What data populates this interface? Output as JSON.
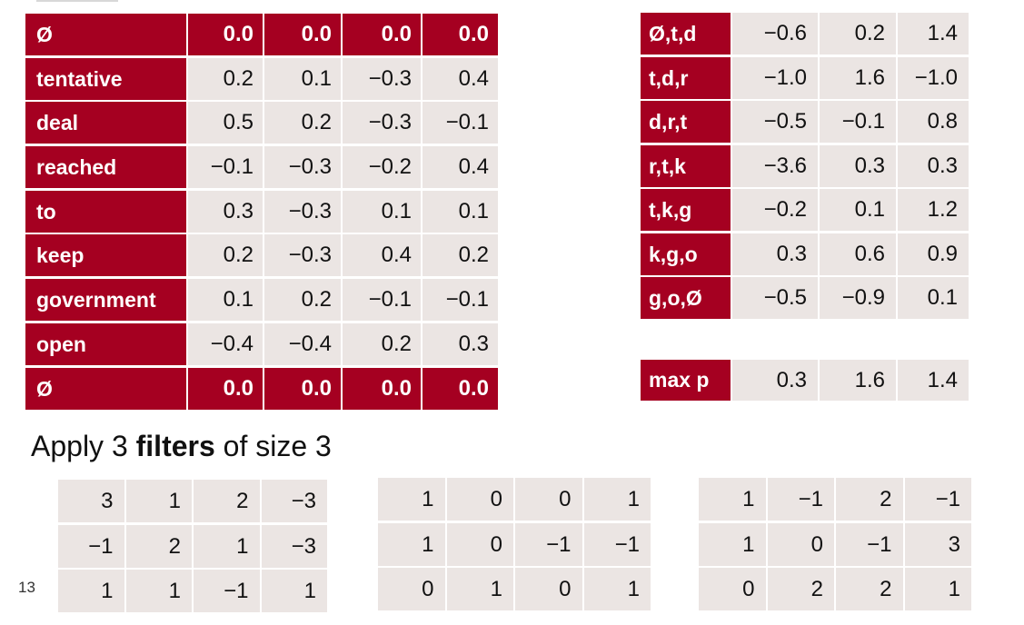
{
  "embedding_table": {
    "rows": [
      {
        "label": "Ø",
        "values": [
          "0.0",
          "0.0",
          "0.0",
          "0.0"
        ],
        "padding": true
      },
      {
        "label": "tentative",
        "values": [
          "0.2",
          "0.1",
          "−0.3",
          "0.4"
        ],
        "padding": false
      },
      {
        "label": "deal",
        "values": [
          "0.5",
          "0.2",
          "−0.3",
          "−0.1"
        ],
        "padding": false
      },
      {
        "label": "reached",
        "values": [
          "−0.1",
          "−0.3",
          "−0.2",
          "0.4"
        ],
        "padding": false
      },
      {
        "label": "to",
        "values": [
          "0.3",
          "−0.3",
          "0.1",
          "0.1"
        ],
        "padding": false
      },
      {
        "label": "keep",
        "values": [
          "0.2",
          "−0.3",
          "0.4",
          "0.2"
        ],
        "padding": false
      },
      {
        "label": "government",
        "values": [
          "0.1",
          "0.2",
          "−0.1",
          "−0.1"
        ],
        "padding": false
      },
      {
        "label": "open",
        "values": [
          "−0.4",
          "−0.4",
          "0.2",
          "0.3"
        ],
        "padding": false
      },
      {
        "label": "Ø",
        "values": [
          "0.0",
          "0.0",
          "0.0",
          "0.0"
        ],
        "padding": true
      }
    ]
  },
  "conv_table": {
    "rows": [
      {
        "label": "Ø,t,d",
        "values": [
          "−0.6",
          "0.2",
          "1.4"
        ]
      },
      {
        "label": "t,d,r",
        "values": [
          "−1.0",
          "1.6",
          "−1.0"
        ]
      },
      {
        "label": "d,r,t",
        "values": [
          "−0.5",
          "−0.1",
          "0.8"
        ]
      },
      {
        "label": "r,t,k",
        "values": [
          "−3.6",
          "0.3",
          "0.3"
        ]
      },
      {
        "label": "t,k,g",
        "values": [
          "−0.2",
          "0.1",
          "1.2"
        ]
      },
      {
        "label": "k,g,o",
        "values": [
          "0.3",
          "0.6",
          "0.9"
        ]
      },
      {
        "label": "g,o,Ø",
        "values": [
          "−0.5",
          "−0.9",
          "0.1"
        ]
      }
    ]
  },
  "max_pool": {
    "label": "max p",
    "values": [
      "0.3",
      "1.6",
      "1.4"
    ]
  },
  "caption": {
    "prefix": "Apply 3 ",
    "bold": "filters",
    "suffix": " of size 3"
  },
  "filters": [
    [
      [
        "3",
        "1",
        "2",
        "−3"
      ],
      [
        "−1",
        "2",
        "1",
        "−3"
      ],
      [
        "1",
        "1",
        "−1",
        "1"
      ]
    ],
    [
      [
        "1",
        "0",
        "0",
        "1"
      ],
      [
        "1",
        "0",
        "−1",
        "−1"
      ],
      [
        "0",
        "1",
        "0",
        "1"
      ]
    ],
    [
      [
        "1",
        "−1",
        "2",
        "−1"
      ],
      [
        "1",
        "0",
        "−1",
        "3"
      ],
      [
        "0",
        "2",
        "2",
        "1"
      ]
    ]
  ],
  "slide_number": "13",
  "colors": {
    "accent": "#a50021",
    "cell_bg": "#ebe5e3"
  }
}
